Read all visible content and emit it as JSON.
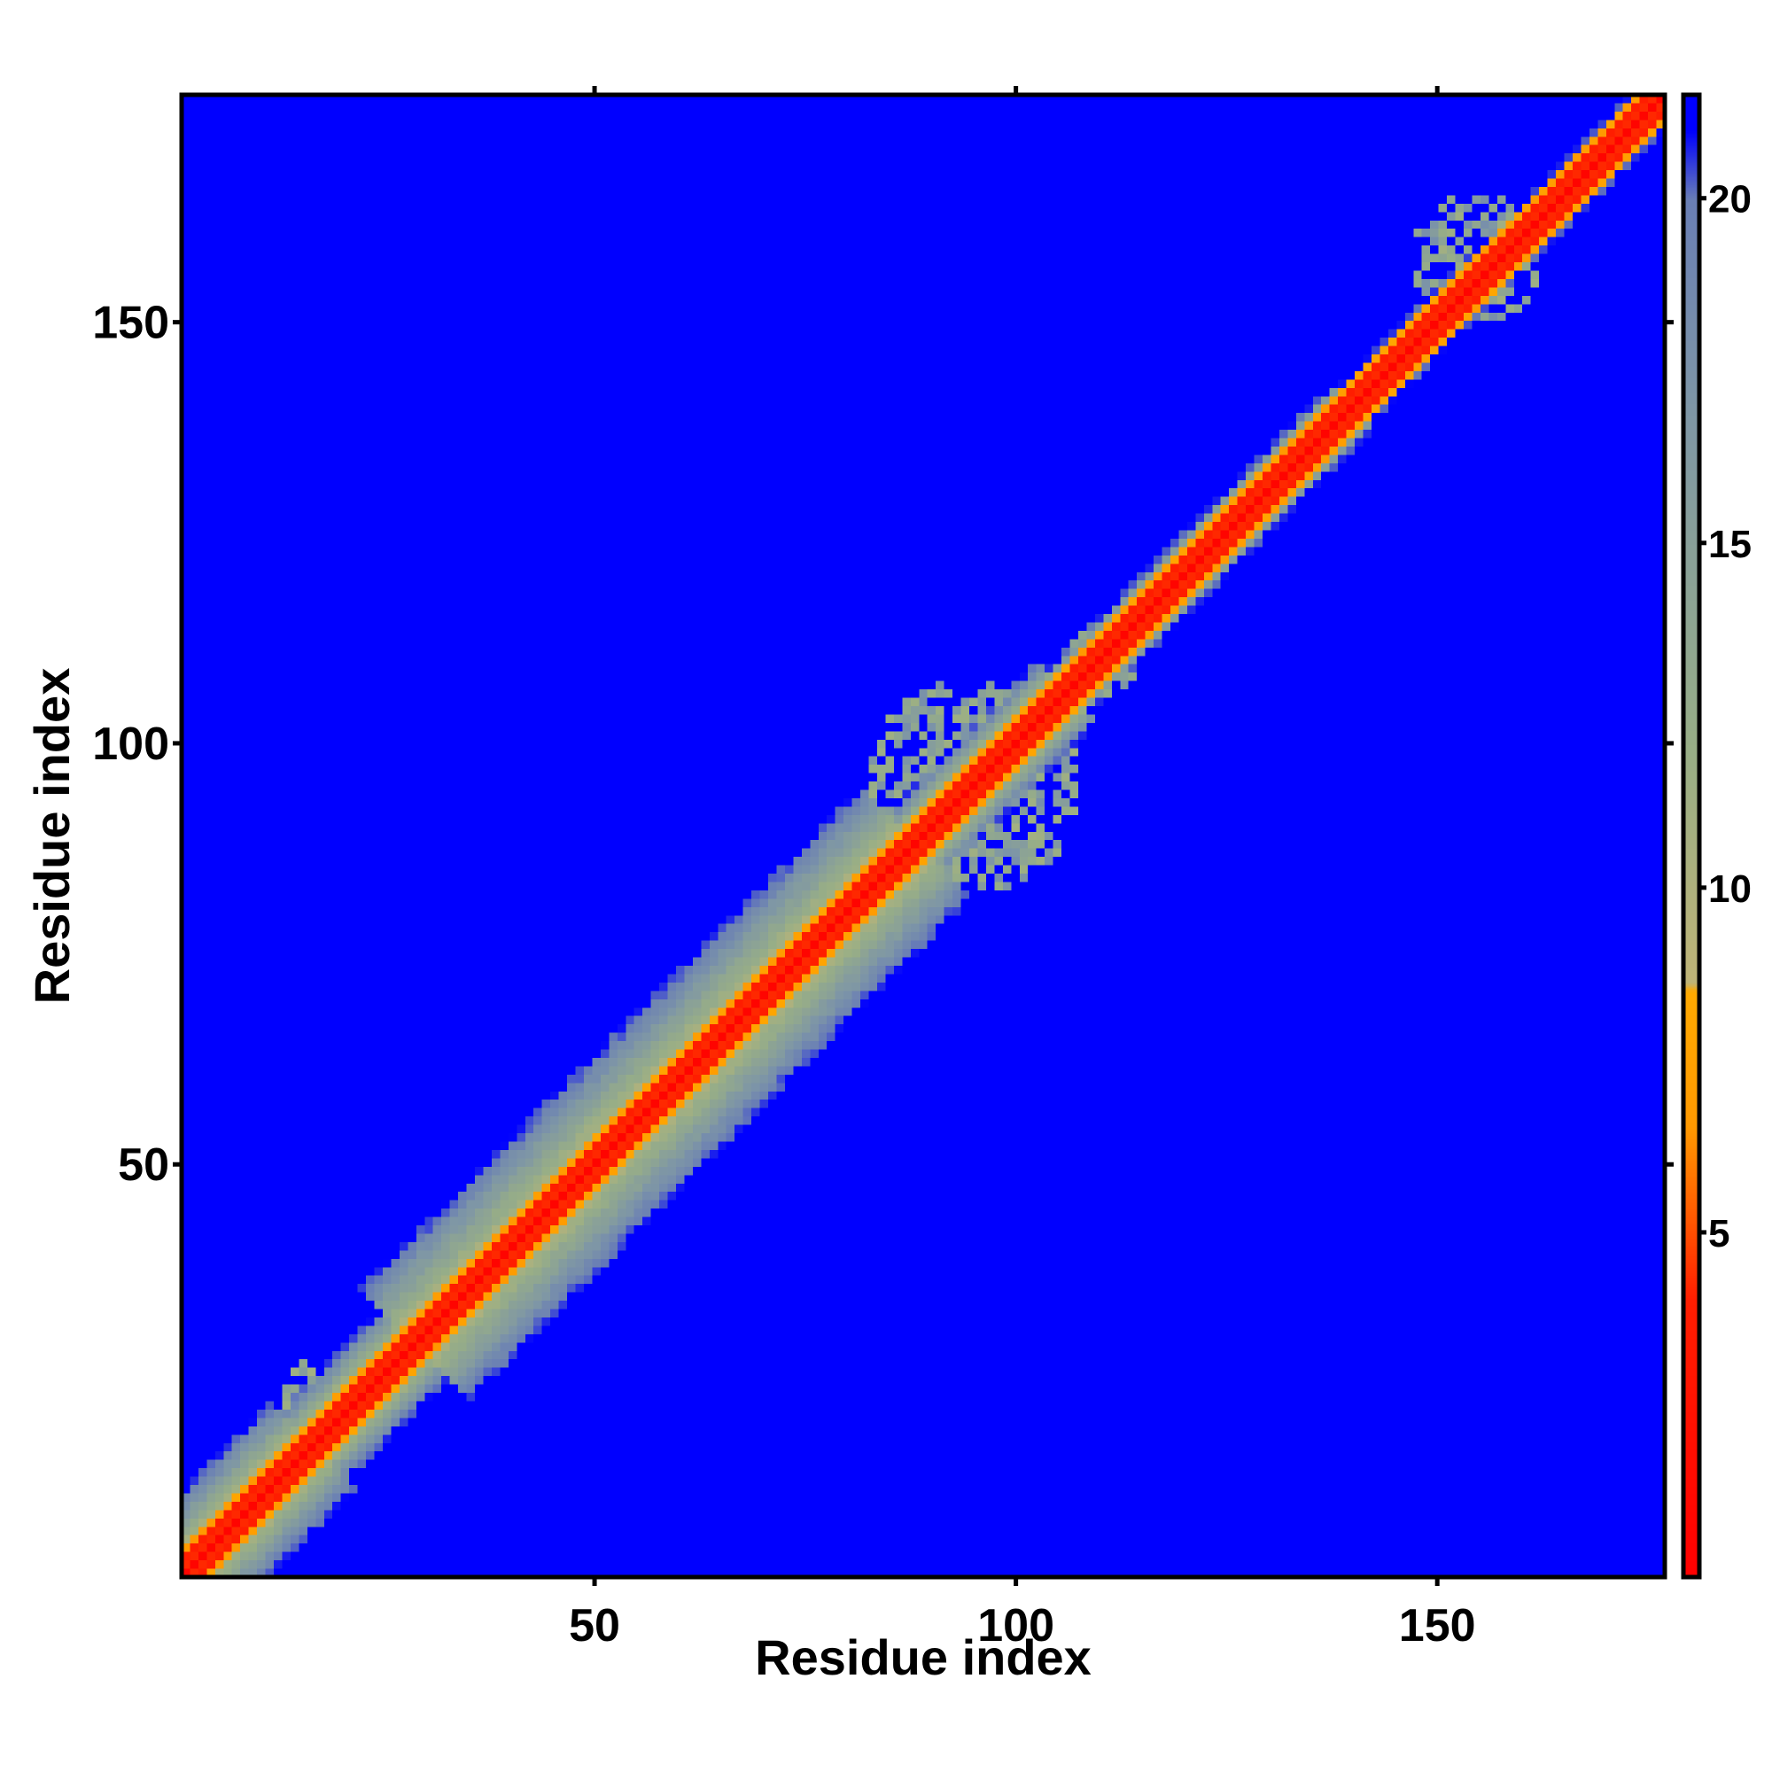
{
  "chart_data": {
    "type": "heatmap",
    "title": "",
    "xlabel": "Residue index",
    "ylabel": "Residue index",
    "n_residues": 177,
    "xlim": [
      1,
      177
    ],
    "ylim": [
      1,
      177
    ],
    "x_ticks": [
      50,
      100,
      150
    ],
    "y_ticks": [
      50,
      100,
      150
    ],
    "colorbar": {
      "range": [
        0,
        21.5
      ],
      "ticks": [
        5,
        10,
        15,
        20
      ],
      "placement": "right",
      "stops": [
        {
          "value": 0,
          "color": "#ff0000"
        },
        {
          "value": 4,
          "color": "#ff1e00"
        },
        {
          "value": 6.5,
          "color": "#ff9900"
        },
        {
          "value": 8.5,
          "color": "#ffaa00"
        },
        {
          "value": 8.6,
          "color": "#bfb477"
        },
        {
          "value": 12,
          "color": "#98ae86"
        },
        {
          "value": 17,
          "color": "#7e96a6"
        },
        {
          "value": 20,
          "color": "#6a7fb5"
        },
        {
          "value": 21,
          "color": "#0000ff"
        },
        {
          "value": 21.5,
          "color": "#0000ff"
        }
      ]
    },
    "background_color": "#0000ff",
    "band_segments": [
      {
        "from": 1,
        "to": 16,
        "width": 10
      },
      {
        "from": 16,
        "to": 28,
        "width": 8
      },
      {
        "from": 28,
        "to": 88,
        "width": 13
      },
      {
        "from": 88,
        "to": 106,
        "width": 7
      },
      {
        "from": 106,
        "to": 120,
        "width": 5
      },
      {
        "from": 120,
        "to": 140,
        "width": 5
      },
      {
        "from": 140,
        "to": 177,
        "width": 4
      }
    ],
    "speckle_regions": [
      {
        "center": [
          95,
          95
        ],
        "spread": 13
      },
      {
        "center": [
          17,
          22
        ],
        "spread": 5
      },
      {
        "center": [
          155,
          158
        ],
        "spread": 8
      },
      {
        "center": [
          110,
          110
        ],
        "spread": 5
      }
    ]
  }
}
